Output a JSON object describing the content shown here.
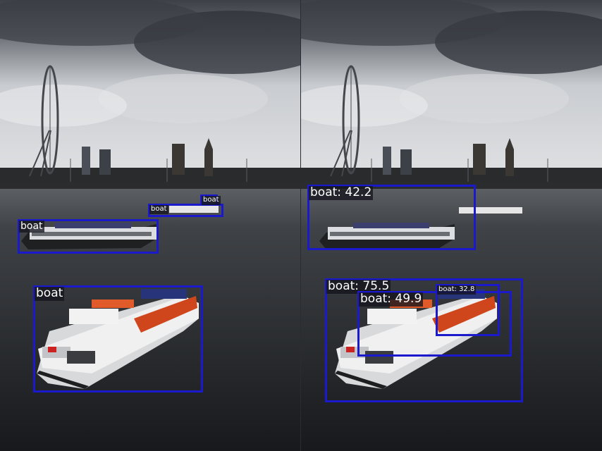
{
  "colors": {
    "box_stroke": "#1a1acc",
    "label_bg": "#14141e",
    "label_text": "#ffffff"
  },
  "left_panel": {
    "detections": [
      {
        "label": "boat"
      },
      {
        "label": "boat"
      },
      {
        "label": "boat"
      },
      {
        "label": "boat"
      }
    ]
  },
  "right_panel": {
    "detections": [
      {
        "label": "boat: 42.2"
      },
      {
        "label": "boat: 75.5"
      },
      {
        "label": "boat: 49.9"
      },
      {
        "label": "boat: 32.8"
      }
    ]
  }
}
